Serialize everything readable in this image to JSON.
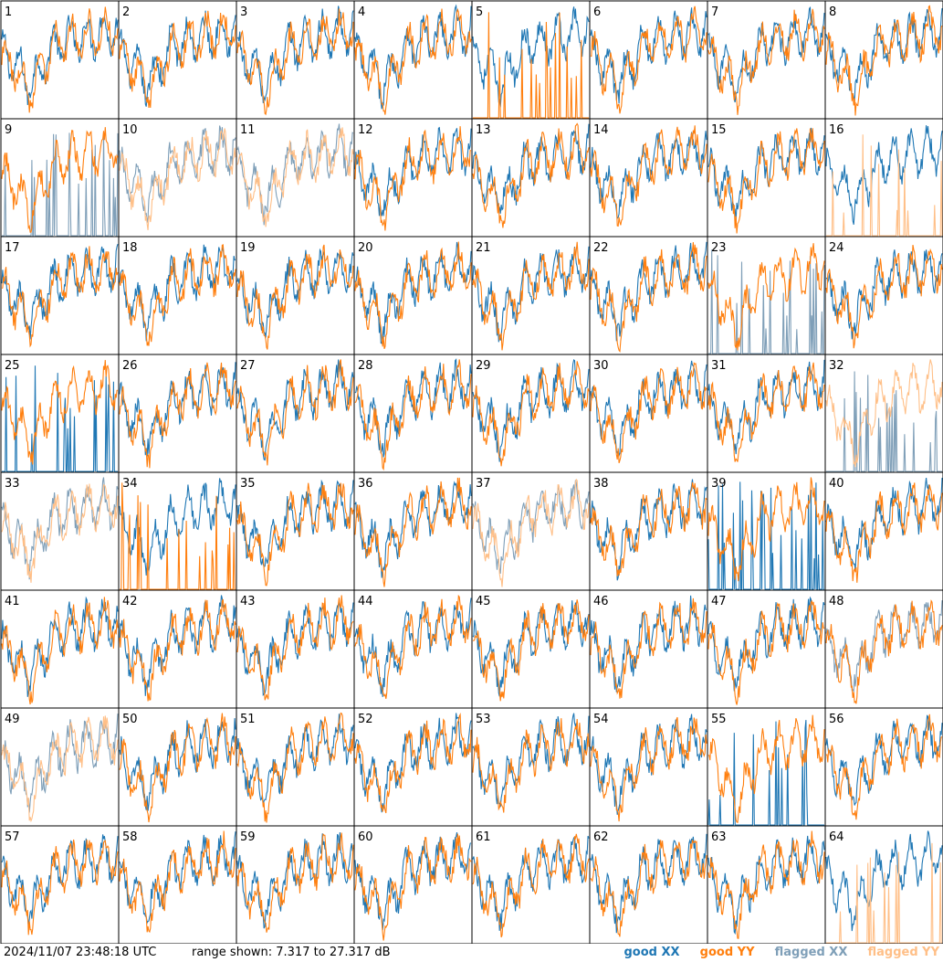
{
  "timestamp": "2024/11/07 23:48:18 UTC",
  "range_text": "range shown: 7.317 to 27.317 dB",
  "legend": {
    "good_xx": "good XX",
    "good_yy": "good YY",
    "flagged_xx": "flagged XX",
    "flagged_yy": "flagged YY"
  },
  "colors": {
    "good_xx": "#1f77b4",
    "good_yy": "#ff7f0e",
    "flagged_xx": "#7f9fb8",
    "flagged_yy": "#ffbf87"
  },
  "chart_data": {
    "type": "line",
    "layout": "8x8 small multiples",
    "ylim_db": [
      7.317,
      27.317
    ],
    "panels": [
      {
        "label": "1",
        "xx": "good",
        "yy": "good"
      },
      {
        "label": "2",
        "xx": "good",
        "yy": "good"
      },
      {
        "label": "3",
        "xx": "good",
        "yy": "good"
      },
      {
        "label": "4",
        "xx": "good",
        "yy": "good"
      },
      {
        "label": "5",
        "xx": "good",
        "yy": "good",
        "yy_pattern": "spikes"
      },
      {
        "label": "6",
        "xx": "good",
        "yy": "good"
      },
      {
        "label": "7",
        "xx": "good",
        "yy": "good"
      },
      {
        "label": "8",
        "xx": "good",
        "yy": "good"
      },
      {
        "label": "9",
        "xx": "flagged",
        "yy": "good",
        "xx_pattern": "spikes"
      },
      {
        "label": "10",
        "xx": "flagged",
        "yy": "flagged"
      },
      {
        "label": "11",
        "xx": "flagged",
        "yy": "flagged"
      },
      {
        "label": "12",
        "xx": "good",
        "yy": "good"
      },
      {
        "label": "13",
        "xx": "good",
        "yy": "good"
      },
      {
        "label": "14",
        "xx": "good",
        "yy": "good"
      },
      {
        "label": "15",
        "xx": "good",
        "yy": "good"
      },
      {
        "label": "16",
        "xx": "good",
        "yy": "flagged",
        "yy_pattern": "spikes"
      },
      {
        "label": "17",
        "xx": "good",
        "yy": "good"
      },
      {
        "label": "18",
        "xx": "good",
        "yy": "good"
      },
      {
        "label": "19",
        "xx": "good",
        "yy": "good"
      },
      {
        "label": "20",
        "xx": "good",
        "yy": "good"
      },
      {
        "label": "21",
        "xx": "good",
        "yy": "good"
      },
      {
        "label": "22",
        "xx": "good",
        "yy": "good"
      },
      {
        "label": "23",
        "xx": "flagged",
        "yy": "good",
        "xx_pattern": "spikes"
      },
      {
        "label": "24",
        "xx": "good",
        "yy": "good"
      },
      {
        "label": "25",
        "xx": "good",
        "yy": "good",
        "xx_pattern": "spikes"
      },
      {
        "label": "26",
        "xx": "good",
        "yy": "good"
      },
      {
        "label": "27",
        "xx": "good",
        "yy": "good"
      },
      {
        "label": "28",
        "xx": "good",
        "yy": "good"
      },
      {
        "label": "29",
        "xx": "good",
        "yy": "good"
      },
      {
        "label": "30",
        "xx": "good",
        "yy": "good"
      },
      {
        "label": "31",
        "xx": "good",
        "yy": "good"
      },
      {
        "label": "32",
        "xx": "flagged",
        "yy": "flagged",
        "xx_pattern": "spikes"
      },
      {
        "label": "33",
        "xx": "flagged",
        "yy": "flagged"
      },
      {
        "label": "34",
        "xx": "good",
        "yy": "good",
        "yy_pattern": "spikes"
      },
      {
        "label": "35",
        "xx": "good",
        "yy": "good"
      },
      {
        "label": "36",
        "xx": "good",
        "yy": "good"
      },
      {
        "label": "37",
        "xx": "flagged",
        "yy": "flagged"
      },
      {
        "label": "38",
        "xx": "good",
        "yy": "good"
      },
      {
        "label": "39",
        "xx": "good",
        "yy": "good",
        "xx_pattern": "spikes"
      },
      {
        "label": "40",
        "xx": "good",
        "yy": "good"
      },
      {
        "label": "41",
        "xx": "good",
        "yy": "good"
      },
      {
        "label": "42",
        "xx": "good",
        "yy": "good"
      },
      {
        "label": "43",
        "xx": "good",
        "yy": "good"
      },
      {
        "label": "44",
        "xx": "good",
        "yy": "good"
      },
      {
        "label": "45",
        "xx": "good",
        "yy": "good"
      },
      {
        "label": "46",
        "xx": "good",
        "yy": "good"
      },
      {
        "label": "47",
        "xx": "good",
        "yy": "good"
      },
      {
        "label": "48",
        "xx": "flagged",
        "yy": "good"
      },
      {
        "label": "49",
        "xx": "flagged",
        "yy": "flagged"
      },
      {
        "label": "50",
        "xx": "good",
        "yy": "good"
      },
      {
        "label": "51",
        "xx": "good",
        "yy": "good"
      },
      {
        "label": "52",
        "xx": "good",
        "yy": "good"
      },
      {
        "label": "53",
        "xx": "good",
        "yy": "good"
      },
      {
        "label": "54",
        "xx": "good",
        "yy": "good"
      },
      {
        "label": "55",
        "xx": "good",
        "yy": "good",
        "xx_pattern": "spikes"
      },
      {
        "label": "56",
        "xx": "good",
        "yy": "good"
      },
      {
        "label": "57",
        "xx": "good",
        "yy": "good"
      },
      {
        "label": "58",
        "xx": "good",
        "yy": "good"
      },
      {
        "label": "59",
        "xx": "good",
        "yy": "good"
      },
      {
        "label": "60",
        "xx": "good",
        "yy": "good"
      },
      {
        "label": "61",
        "xx": "good",
        "yy": "good"
      },
      {
        "label": "62",
        "xx": "good",
        "yy": "good"
      },
      {
        "label": "63",
        "xx": "good",
        "yy": "good"
      },
      {
        "label": "64",
        "xx": "good",
        "yy": "flagged",
        "yy_pattern": "spikes"
      }
    ]
  }
}
